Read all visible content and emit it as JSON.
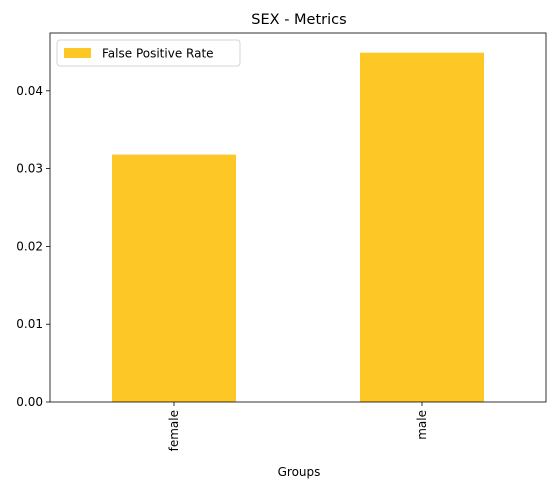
{
  "chart_data": {
    "type": "bar",
    "title": "SEX - Metrics",
    "xlabel": "Groups",
    "ylabel": "",
    "categories": [
      "female",
      "male"
    ],
    "series": [
      {
        "name": "False Positive Rate",
        "values": [
          0.0318,
          0.0449
        ],
        "color": "#fdc726"
      }
    ],
    "ylim": [
      0,
      0.04743
    ],
    "yticks": [
      0.0,
      0.01,
      0.02,
      0.03,
      0.04
    ],
    "ytick_labels": [
      "0.00",
      "0.01",
      "0.02",
      "0.03",
      "0.04"
    ],
    "grid": false,
    "legend_position": "upper-left"
  }
}
